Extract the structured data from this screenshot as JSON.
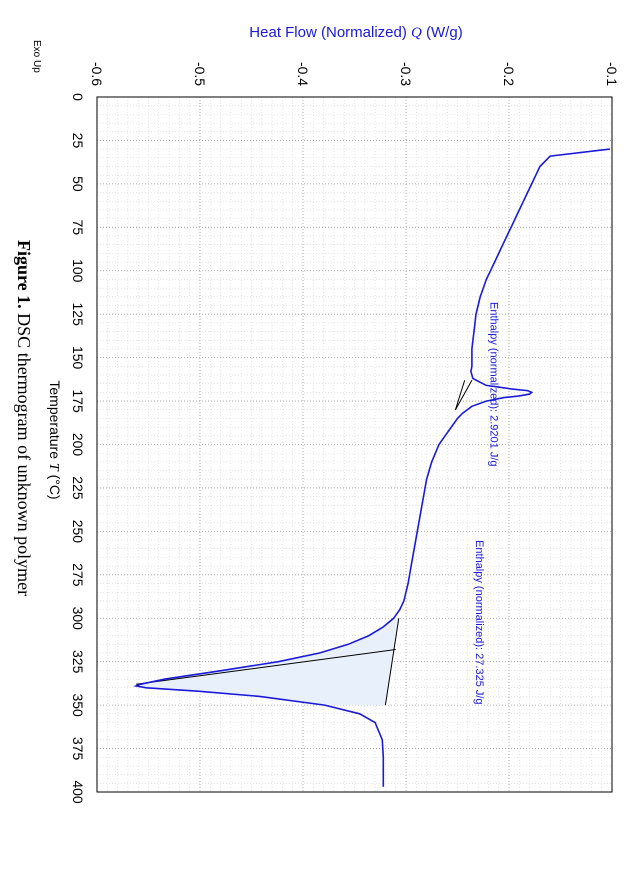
{
  "chart_data": {
    "type": "line",
    "title": "",
    "ylabel_prefix": "Heat Flow (Normalized)",
    "ylabel_symbol": "Q",
    "ylabel_unit": "(W/g)",
    "xlabel_prefix": "Temperature",
    "xlabel_symbol": "T",
    "xlabel_unit": "(°C)",
    "exo_label": "Exo Up",
    "caption_bold": "Figure 1.",
    "caption_rest": " DSC thermogram of unknown polymer",
    "xlim": [
      0,
      400
    ],
    "ylim": [
      -0.6,
      -0.1
    ],
    "xticks": [
      "0",
      "25",
      "50",
      "75",
      "100",
      "125",
      "150",
      "175",
      "200",
      "225",
      "250",
      "275",
      "300",
      "325",
      "350",
      "375",
      "400"
    ],
    "yticks": [
      "-0.6",
      "-0.5",
      "-0.4",
      "-0.3",
      "-0.2",
      "-0.1"
    ],
    "grid": true,
    "colors": {
      "curve": "#1a1ad8",
      "baseline": "#000000",
      "fill": "#e8f0fb",
      "grid": "#bbbbbb",
      "annotation": "#1a1ad8"
    },
    "series": [
      {
        "x": [
          30,
          34,
          40,
          45,
          50,
          55,
          60,
          65,
          70,
          75,
          80,
          85,
          90,
          95,
          100,
          105,
          110,
          115,
          120,
          125,
          130,
          135,
          140,
          145,
          150,
          155,
          158,
          162,
          166,
          168,
          169,
          170,
          171,
          172,
          173,
          175,
          178,
          182,
          185,
          190,
          195,
          200,
          210,
          220,
          230,
          240,
          250,
          260,
          270,
          280,
          290,
          295,
          300,
          305,
          310,
          315,
          320,
          325,
          330,
          335,
          338,
          339,
          340,
          342,
          345,
          350,
          355,
          360,
          370,
          380,
          390,
          397
        ],
        "y": [
          -0.102,
          -0.16,
          -0.17,
          -0.174,
          -0.178,
          -0.182,
          -0.186,
          -0.19,
          -0.194,
          -0.198,
          -0.202,
          -0.206,
          -0.21,
          -0.214,
          -0.218,
          -0.222,
          -0.225,
          -0.228,
          -0.23,
          -0.232,
          -0.233,
          -0.234,
          -0.235,
          -0.236,
          -0.236,
          -0.236,
          -0.237,
          -0.235,
          -0.222,
          -0.198,
          -0.182,
          -0.178,
          -0.18,
          -0.19,
          -0.205,
          -0.222,
          -0.236,
          -0.245,
          -0.25,
          -0.256,
          -0.262,
          -0.268,
          -0.275,
          -0.28,
          -0.283,
          -0.286,
          -0.289,
          -0.292,
          -0.295,
          -0.298,
          -0.302,
          -0.306,
          -0.312,
          -0.322,
          -0.336,
          -0.356,
          -0.384,
          -0.424,
          -0.478,
          -0.534,
          -0.558,
          -0.562,
          -0.552,
          -0.502,
          -0.442,
          -0.379,
          -0.345,
          -0.33,
          -0.323,
          -0.322,
          -0.322,
          -0.322
        ]
      }
    ],
    "peaks": [
      {
        "label": "Enthalpy (normalized): 2.9201 J/g",
        "baseline": {
          "x": [
            163,
            180
          ],
          "y": [
            -0.243,
            -0.252
          ]
        },
        "integration": {
          "x": [
            163,
            180
          ],
          "y": [
            -0.236,
            -0.252
          ]
        }
      },
      {
        "label": "Enthalpy (normalized): 27.325 J/g",
        "baseline": {
          "x": [
            300,
            350
          ],
          "y": [
            -0.307,
            -0.32
          ]
        },
        "tangent": {
          "x": [
            318,
            338
          ],
          "y": [
            -0.31,
            -0.562
          ]
        }
      }
    ]
  }
}
